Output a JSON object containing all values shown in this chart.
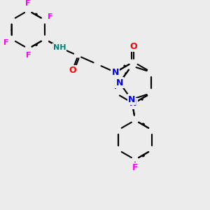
{
  "background_color": "#ececec",
  "bond_color": "#000000",
  "bond_width": 1.5,
  "aromatic_bond_color": "#000000",
  "atom_colors": {
    "N": "#0000ff",
    "O": "#ff0000",
    "F": "#ff00ff",
    "H": "#008080",
    "C": "#000000"
  },
  "title": "",
  "figsize": [
    3.0,
    3.0
  ],
  "dpi": 100
}
